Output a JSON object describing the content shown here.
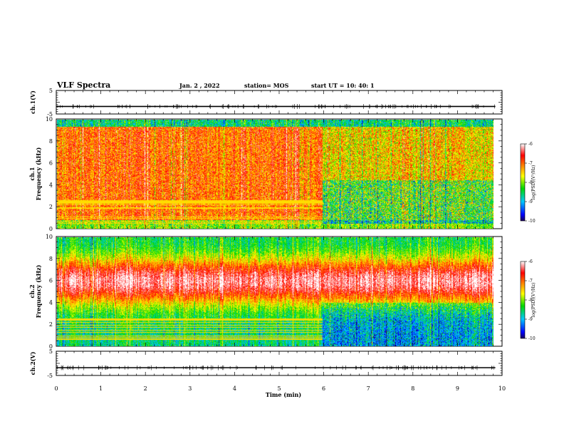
{
  "header": {
    "title": "VLF Spectra",
    "date": "Jan. 2 , 2022",
    "station": "station= MOS",
    "start": "start UT = 10: 40: 1"
  },
  "chart_data": [
    {
      "type": "line",
      "panel": "waveform-ch1",
      "ylabel": "ch.1(V)",
      "ylim": [
        -5,
        5
      ],
      "yticks": [
        "5",
        "-5"
      ],
      "xlim": [
        0,
        10
      ],
      "series": [
        {
          "x": [
            0,
            9.85
          ],
          "values": [
            -1.8,
            -1.8
          ]
        }
      ]
    },
    {
      "type": "heatmap",
      "panel": "spectrogram-ch1",
      "ylabel": "Frequency (kHz)",
      "channel_label": "ch.1",
      "ylim": [
        0,
        10
      ],
      "yticks": [
        "0",
        "2",
        "4",
        "6",
        "8",
        "10"
      ],
      "xlim": [
        0,
        10
      ],
      "data_extent_min": 9.85,
      "transition_min": 5.95,
      "colorbar": {
        "label": "log(PSD)(V²/Hz)",
        "ticks": [
          "-6",
          "-7",
          "-8",
          "-9",
          "-10"
        ],
        "range": [
          -10,
          -6
        ]
      }
    },
    {
      "type": "heatmap",
      "panel": "spectrogram-ch2",
      "ylabel": "Frequency (kHz)",
      "channel_label": "ch.2",
      "ylim": [
        0,
        10
      ],
      "yticks": [
        "0",
        "2",
        "4",
        "6",
        "8",
        "10"
      ],
      "xlim": [
        0,
        10
      ],
      "data_extent_min": 9.85,
      "transition_min": 5.95,
      "colorbar": {
        "label": "log(PSD)(V²/Hz)",
        "ticks": [
          "-6",
          "-7",
          "-8",
          "-9",
          "-10"
        ],
        "range": [
          -10,
          -6
        ]
      }
    },
    {
      "type": "line",
      "panel": "waveform-ch2",
      "ylabel": "ch.2(V)",
      "ylim": [
        -5,
        5
      ],
      "yticks": [
        "5",
        "-5"
      ],
      "xlim": [
        0,
        10
      ],
      "xlabel": "Time (min)",
      "xticks": [
        "0",
        "1",
        "2",
        "3",
        "4",
        "5",
        "6",
        "7",
        "8",
        "9",
        "10"
      ],
      "series": [
        {
          "x": [
            0,
            9.85
          ],
          "values": [
            -1.8,
            -1.8
          ]
        }
      ]
    }
  ]
}
